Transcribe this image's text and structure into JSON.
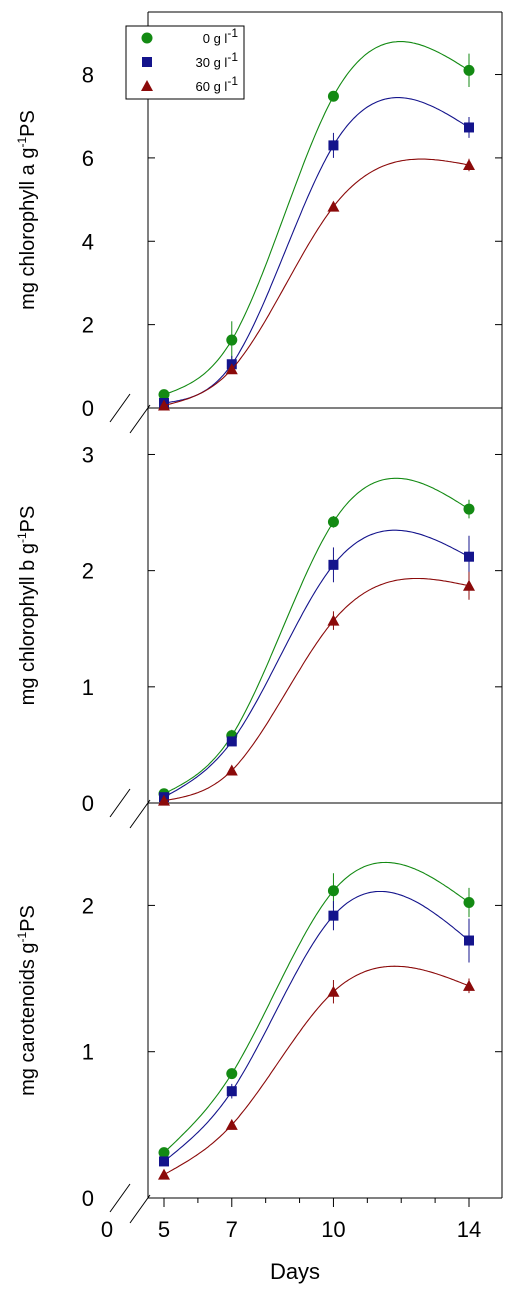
{
  "colors": {
    "0 g l-1": "#138A13",
    "30 g l-1": "#14148C",
    "60 g l-1": "#8B0A0A"
  },
  "legend": [
    {
      "series": "0 g l-1",
      "label": "0 g l",
      "sup": "-1",
      "marker": "circle"
    },
    {
      "series": "30 g l-1",
      "label": "30 g l",
      "sup": "-1",
      "marker": "square"
    },
    {
      "series": "60 g l-1",
      "label": "60 g l",
      "sup": "-1",
      "marker": "triangle"
    }
  ],
  "chart_data": [
    {
      "type": "line",
      "panel": "top",
      "ylabel": "mg chlorophyll a g",
      "ylabel_sup": "-1",
      "ylabel_suffix": "PS",
      "ylim": [
        0,
        9.5
      ],
      "yticks": [
        0,
        2,
        4,
        6,
        8
      ],
      "ytick_labels": [
        "0",
        "2",
        "4",
        "6",
        "8"
      ],
      "x": [
        5,
        7,
        10,
        14
      ],
      "series": [
        {
          "name": "0 g l-1",
          "values": [
            0.32,
            1.63,
            7.48,
            8.1
          ],
          "errors": [
            0.05,
            0.45,
            0.1,
            0.4
          ]
        },
        {
          "name": "30 g l-1",
          "values": [
            0.12,
            1.05,
            6.3,
            6.73
          ],
          "errors": [
            0.05,
            0.2,
            0.3,
            0.25
          ]
        },
        {
          "name": "60 g l-1",
          "values": [
            0.06,
            0.93,
            4.83,
            5.83
          ],
          "errors": [
            0.03,
            0.1,
            0.1,
            0.15
          ]
        }
      ]
    },
    {
      "type": "line",
      "panel": "middle",
      "ylabel": "mg chlorophyll b g",
      "ylabel_sup": "-1",
      "ylabel_suffix": "PS",
      "ylim": [
        0,
        3.4
      ],
      "yticks": [
        0,
        1,
        2,
        3
      ],
      "ytick_labels": [
        "0",
        "1",
        "2",
        "3"
      ],
      "x": [
        5,
        7,
        10,
        14
      ],
      "series": [
        {
          "name": "0 g l-1",
          "values": [
            0.08,
            0.58,
            2.42,
            2.53
          ],
          "errors": [
            0.03,
            0.05,
            0.05,
            0.08
          ]
        },
        {
          "name": "30 g l-1",
          "values": [
            0.05,
            0.53,
            2.05,
            2.12
          ],
          "errors": [
            0.02,
            0.04,
            0.15,
            0.18
          ]
        },
        {
          "name": "60 g l-1",
          "values": [
            0.02,
            0.28,
            1.57,
            1.87
          ],
          "errors": [
            0.02,
            0.03,
            0.08,
            0.12
          ]
        }
      ]
    },
    {
      "type": "line",
      "panel": "bottom",
      "ylabel": "mg carotenoids g",
      "ylabel_sup": "-1",
      "ylabel_suffix": "PS",
      "ylim": [
        0,
        2.7
      ],
      "yticks": [
        0,
        1,
        2
      ],
      "ytick_labels": [
        "0",
        "1",
        "2"
      ],
      "xlabel": "Days",
      "xtick_labels": [
        "0",
        "5",
        "7",
        "10",
        "14"
      ],
      "x": [
        5,
        7,
        10,
        14
      ],
      "series": [
        {
          "name": "0 g l-1",
          "values": [
            0.31,
            0.85,
            2.1,
            2.02
          ],
          "errors": [
            0.03,
            0.03,
            0.12,
            0.1
          ]
        },
        {
          "name": "30 g l-1",
          "values": [
            0.25,
            0.73,
            1.93,
            1.76
          ],
          "errors": [
            0.03,
            0.05,
            0.1,
            0.15
          ]
        },
        {
          "name": "60 g l-1",
          "values": [
            0.16,
            0.5,
            1.41,
            1.45
          ],
          "errors": [
            0.02,
            0.03,
            0.08,
            0.05
          ]
        }
      ]
    }
  ]
}
